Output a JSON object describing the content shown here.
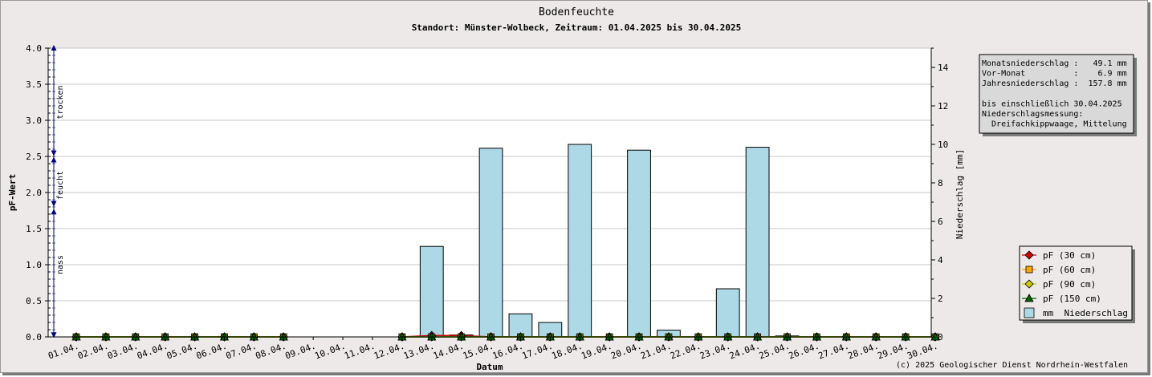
{
  "chart_data": {
    "type": "bar",
    "title": "Bodenfeuchte",
    "subtitle": "Standort: Münster-Wolbeck, Zeitraum: 01.04.2025 bis 30.04.2025",
    "xlabel": "Datum",
    "ylabel_left": "pF-Wert",
    "ylabel_right": "Niederschlag [mm]",
    "categories": [
      "01.04.",
      "02.04.",
      "03.04.",
      "04.04.",
      "05.04.",
      "06.04.",
      "07.04.",
      "08.04.",
      "09.04.",
      "10.04.",
      "11.04.",
      "12.04.",
      "13.04.",
      "14.04.",
      "15.04.",
      "16.04.",
      "17.04.",
      "18.04.",
      "19.04.",
      "20.04.",
      "21.04.",
      "22.04.",
      "23.04.",
      "24.04.",
      "25.04.",
      "26.04.",
      "27.04.",
      "28.04.",
      "29.04.",
      "30.04."
    ],
    "y_left_lim": [
      0,
      4.0
    ],
    "y_left_ticks": [
      "0.0",
      "0.5",
      "1.0",
      "1.5",
      "2.0",
      "2.5",
      "3.0",
      "3.5",
      "4.0"
    ],
    "y_right_lim": [
      0,
      15
    ],
    "y_right_ticks": [
      "0",
      "2",
      "4",
      "6",
      "8",
      "10",
      "12",
      "14"
    ],
    "grid": true,
    "legend_position": "right",
    "zones": [
      {
        "label": "trocken",
        "from": 2.5,
        "to": 4.0
      },
      {
        "label": "feucht",
        "from": 1.7,
        "to": 2.5
      },
      {
        "label": "nass",
        "from": 0.0,
        "to": 1.7
      }
    ],
    "series": [
      {
        "name": "pF (30 cm)",
        "axis": "left",
        "color": "#cc0000",
        "marker": "diamond",
        "values": [
          0,
          0,
          0,
          0,
          0,
          0,
          0,
          0,
          null,
          null,
          null,
          0,
          0.02,
          0.02,
          0,
          0,
          0,
          0,
          0,
          0,
          0,
          0,
          0,
          0,
          0,
          0,
          0,
          0,
          0,
          0
        ]
      },
      {
        "name": "pF (60 cm)",
        "axis": "left",
        "color": "#ffa500",
        "marker": "square",
        "values": [
          0,
          0,
          0,
          0,
          0,
          0,
          0,
          0,
          null,
          null,
          null,
          0,
          0,
          0,
          0,
          0,
          0,
          0,
          0,
          0,
          0,
          0,
          0,
          0,
          0,
          0,
          0,
          0,
          0,
          0
        ]
      },
      {
        "name": "pF (90 cm)",
        "axis": "left",
        "color": "#cccc00",
        "marker": "diamond",
        "values": [
          0,
          0,
          0,
          0,
          0,
          0,
          0,
          0,
          null,
          null,
          null,
          0,
          0,
          0,
          0,
          0,
          0,
          0,
          0,
          0,
          0,
          0,
          0,
          0,
          0,
          0,
          0,
          0,
          0,
          0
        ]
      },
      {
        "name": "pF (150 cm)",
        "axis": "left",
        "color": "#006400",
        "marker": "triangle",
        "values": [
          0,
          0,
          0,
          0,
          0,
          0,
          0,
          0,
          null,
          null,
          null,
          0,
          0,
          0,
          0,
          0,
          0,
          0,
          0,
          0,
          0,
          0,
          0,
          0,
          0,
          0,
          0,
          0,
          0,
          0
        ]
      },
      {
        "name": "mm  Niederschlag",
        "axis": "right",
        "color": "#add8e6",
        "marker": "bar",
        "values": [
          0,
          0,
          0,
          0,
          0,
          0,
          0,
          0,
          0,
          0,
          0,
          0,
          4.7,
          0.1,
          9.8,
          1.2,
          0.75,
          10.0,
          0,
          9.7,
          0.35,
          0,
          2.5,
          9.85,
          0.05,
          0,
          0,
          0,
          0,
          0
        ]
      }
    ]
  },
  "info_box": {
    "lines": [
      "Monatsniederschlag :   49.1 mm",
      "Vor-Monat          :    6.9 mm",
      "Jahresniederschlag :  157.8 mm",
      "",
      "bis einschließlich 30.04.2025",
      "Niederschlagsmessung:",
      "  Dreifachkippwaage, Mittelung"
    ]
  },
  "copyright": "(c) 2025 Geologischer Dienst Nordrhein-Westfalen"
}
